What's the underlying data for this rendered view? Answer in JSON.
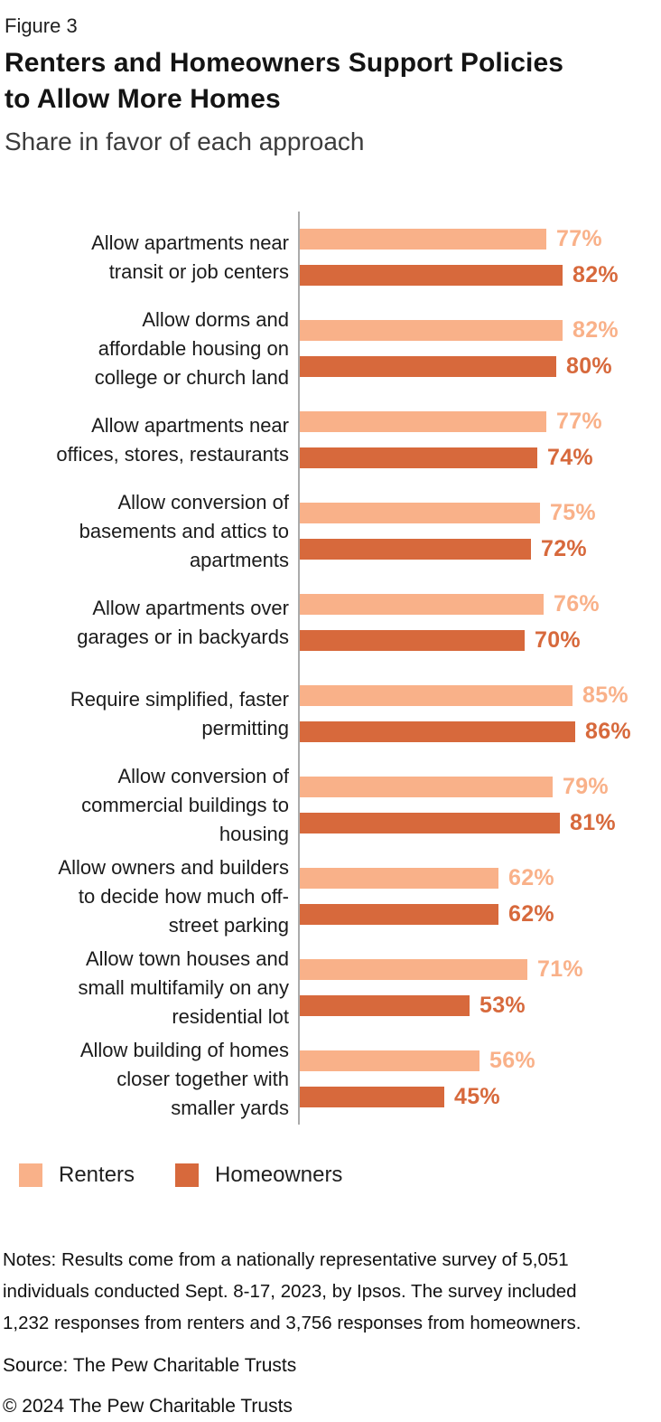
{
  "figure_label": "Figure 3",
  "title": "Renters and Homeowners Support Policies\nto Allow More Homes",
  "subtitle": "Share in favor of each approach",
  "colors": {
    "renters": "#F9B189",
    "homeowners": "#D7693C",
    "axis": "#ABABAB"
  },
  "legend": {
    "items": [
      {
        "label": "Renters",
        "color": "#F9B189"
      },
      {
        "label": "Homeowners",
        "color": "#D7693C"
      }
    ]
  },
  "chart_data": {
    "type": "bar",
    "orientation": "horizontal",
    "value_suffix": "%",
    "xlim": [
      0,
      100
    ],
    "grid": false,
    "legend_position": "bottom",
    "categories": [
      "Allow apartments near\ntransit or job centers",
      "Allow dorms and\naffordable housing on\ncollege or church land",
      "Allow apartments near\noffices, stores, restaurants",
      "Allow conversion of\nbasements and attics to\napartments",
      "Allow apartments over\ngarages or in backyards",
      "Require simplified, faster\npermitting",
      "Allow conversion of\ncommercial buildings to\nhousing",
      "Allow owners and builders\nto decide how much off-\nstreet parking",
      "Allow town houses and\nsmall multifamily on any\nresidential lot",
      "Allow building of homes\ncloser together with\nsmaller yards"
    ],
    "series": [
      {
        "name": "Renters",
        "color": "#F9B189",
        "values": [
          77,
          82,
          77,
          75,
          76,
          85,
          79,
          62,
          71,
          56
        ]
      },
      {
        "name": "Homeowners",
        "color": "#D7693C",
        "values": [
          82,
          80,
          74,
          72,
          70,
          86,
          81,
          62,
          53,
          45
        ]
      }
    ]
  },
  "notes": "Notes: Results come from a nationally representative survey of 5,051\nindividuals conducted Sept. 8-17, 2023, by Ipsos. The survey included\n1,232 responses from renters and 3,756 responses from homeowners.",
  "source": "Source: The Pew Charitable Trusts",
  "copyright": "© 2024 The Pew Charitable Trusts"
}
